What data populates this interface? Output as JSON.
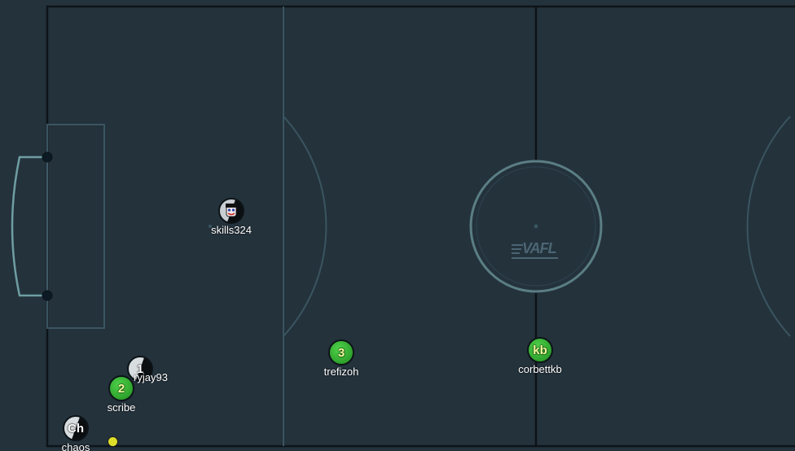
{
  "pitch": {
    "colors": {
      "grass": "#24323c",
      "boundary": "#0d1418",
      "midline": "#0d1418",
      "markings": "#3a5560",
      "center_circle": "#5a7e84",
      "goal": "#6e9ea2",
      "post": "#0b1a24"
    },
    "watermark": "VAFL"
  },
  "players": [
    {
      "id": "skills324",
      "name": "skills324",
      "badge": "",
      "icon": "avatar-face-icon",
      "style": "avatar"
    },
    {
      "id": "ryjay93",
      "name": "ryjay93",
      "badge": "1",
      "icon": "",
      "style": "dark"
    },
    {
      "id": "scribe",
      "name": "scribe",
      "badge": "2",
      "icon": "",
      "style": "green"
    },
    {
      "id": "trefizoh",
      "name": "trefizoh",
      "badge": "3",
      "icon": "",
      "style": "green"
    },
    {
      "id": "corbettkb",
      "name": "corbettkb",
      "badge": "kb",
      "icon": "",
      "style": "green"
    },
    {
      "id": "chaos",
      "name": "chaos",
      "badge": "Ch",
      "icon": "",
      "style": "dark"
    }
  ],
  "ball": {
    "color": "#dede2a"
  }
}
